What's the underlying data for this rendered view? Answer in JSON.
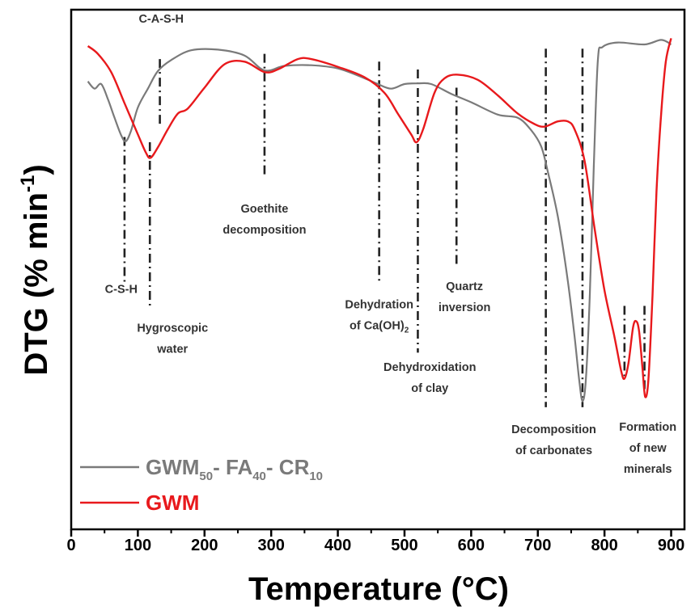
{
  "chart_data": {
    "type": "line",
    "xlabel": "Temperature (°C)",
    "ylabel_parts": {
      "main": "DTG (% min",
      "sup": "-1",
      "close": ")"
    },
    "xlim": [
      0,
      920
    ],
    "x_ticks": [
      0,
      100,
      200,
      300,
      400,
      500,
      600,
      700,
      800,
      900
    ],
    "y_ticks_labeled": false,
    "grid": false,
    "legend_position": "bottom-left",
    "series": [
      {
        "id": "gwm50",
        "name": "GWM50- FA40- CR10",
        "name_parts": [
          {
            "t": "GWM",
            "sub": false
          },
          {
            "t": "50",
            "sub": true
          },
          {
            "t": "- FA",
            "sub": false
          },
          {
            "t": "40",
            "sub": true
          },
          {
            "t": "- CR",
            "sub": false
          },
          {
            "t": "10",
            "sub": true
          }
        ],
        "color": "#7a7a7a",
        "points": [
          [
            25,
            0.86
          ],
          [
            35,
            0.85
          ],
          [
            45,
            0.855
          ],
          [
            55,
            0.83
          ],
          [
            65,
            0.79
          ],
          [
            75,
            0.76
          ],
          [
            82,
            0.745
          ],
          [
            90,
            0.77
          ],
          [
            100,
            0.81
          ],
          [
            115,
            0.85
          ],
          [
            130,
            0.88
          ],
          [
            150,
            0.905
          ],
          [
            180,
            0.92
          ],
          [
            220,
            0.925
          ],
          [
            260,
            0.91
          ],
          [
            290,
            0.885
          ],
          [
            320,
            0.89
          ],
          [
            360,
            0.895
          ],
          [
            400,
            0.885
          ],
          [
            440,
            0.87
          ],
          [
            460,
            0.855
          ],
          [
            480,
            0.85
          ],
          [
            500,
            0.855
          ],
          [
            520,
            0.86
          ],
          [
            540,
            0.855
          ],
          [
            570,
            0.84
          ],
          [
            600,
            0.82
          ],
          [
            640,
            0.8
          ],
          [
            670,
            0.79
          ],
          [
            690,
            0.77
          ],
          [
            705,
            0.735
          ],
          [
            715,
            0.69
          ],
          [
            730,
            0.6
          ],
          [
            745,
            0.48
          ],
          [
            755,
            0.37
          ],
          [
            762,
            0.29
          ],
          [
            767,
            0.245
          ],
          [
            772,
            0.29
          ],
          [
            778,
            0.45
          ],
          [
            784,
            0.7
          ],
          [
            790,
            0.9
          ],
          [
            797,
            0.93
          ],
          [
            820,
            0.935
          ],
          [
            860,
            0.935
          ],
          [
            885,
            0.94
          ],
          [
            900,
            0.935
          ]
        ]
      },
      {
        "id": "gwm",
        "name": "GWM",
        "name_parts": [
          {
            "t": "GWM",
            "sub": false
          }
        ],
        "color": "#e8191c",
        "points": [
          [
            25,
            0.93
          ],
          [
            40,
            0.915
          ],
          [
            60,
            0.88
          ],
          [
            80,
            0.82
          ],
          [
            100,
            0.76
          ],
          [
            112,
            0.725
          ],
          [
            119,
            0.715
          ],
          [
            130,
            0.735
          ],
          [
            145,
            0.77
          ],
          [
            160,
            0.8
          ],
          [
            175,
            0.81
          ],
          [
            200,
            0.85
          ],
          [
            230,
            0.895
          ],
          [
            260,
            0.9
          ],
          [
            290,
            0.88
          ],
          [
            310,
            0.885
          ],
          [
            340,
            0.905
          ],
          [
            360,
            0.905
          ],
          [
            400,
            0.89
          ],
          [
            440,
            0.87
          ],
          [
            470,
            0.84
          ],
          [
            490,
            0.8
          ],
          [
            510,
            0.76
          ],
          [
            518,
            0.745
          ],
          [
            528,
            0.77
          ],
          [
            545,
            0.84
          ],
          [
            560,
            0.868
          ],
          [
            580,
            0.875
          ],
          [
            610,
            0.865
          ],
          [
            640,
            0.835
          ],
          [
            670,
            0.8
          ],
          [
            695,
            0.78
          ],
          [
            710,
            0.775
          ],
          [
            730,
            0.785
          ],
          [
            745,
            0.785
          ],
          [
            755,
            0.77
          ],
          [
            770,
            0.71
          ],
          [
            785,
            0.58
          ],
          [
            800,
            0.46
          ],
          [
            815,
            0.37
          ],
          [
            825,
            0.305
          ],
          [
            830,
            0.29
          ],
          [
            836,
            0.32
          ],
          [
            843,
            0.39
          ],
          [
            848,
            0.4
          ],
          [
            852,
            0.38
          ],
          [
            857,
            0.31
          ],
          [
            861,
            0.255
          ],
          [
            866,
            0.29
          ],
          [
            872,
            0.45
          ],
          [
            878,
            0.65
          ],
          [
            885,
            0.8
          ],
          [
            892,
            0.9
          ],
          [
            900,
            0.945
          ]
        ]
      }
    ],
    "markers": [
      {
        "x": 80,
        "ytop": 0.755,
        "ybot": 0.475
      },
      {
        "x": 118,
        "ytop": 0.745,
        "ybot": 0.425
      },
      {
        "x": 133,
        "ytop": 0.905,
        "ybot": 0.775
      },
      {
        "x": 290,
        "ytop": 0.915,
        "ybot": 0.68
      },
      {
        "x": 462,
        "ytop": 0.9,
        "ybot": 0.475
      },
      {
        "x": 520,
        "ytop": 0.885,
        "ybot": 0.34
      },
      {
        "x": 578,
        "ytop": 0.85,
        "ybot": 0.51
      },
      {
        "x": 712,
        "ytop": 0.925,
        "ybot": 0.235
      },
      {
        "x": 767,
        "ytop": 0.925,
        "ybot": 0.235
      },
      {
        "x": 830,
        "ytop": 0.43,
        "ybot": 0.295
      },
      {
        "x": 860,
        "ytop": 0.43,
        "ybot": 0.265
      }
    ],
    "annotations": [
      {
        "id": "cash",
        "lines": [
          "C-A-S-H"
        ],
        "x": 135,
        "y": 0.975,
        "anchor": "middle"
      },
      {
        "id": "csh",
        "lines": [
          "C-S-H"
        ],
        "x": 75,
        "y": 0.455,
        "anchor": "middle"
      },
      {
        "id": "hygro",
        "lines": [
          "Hygroscopic",
          "water"
        ],
        "x": 152,
        "y": 0.38,
        "anchor": "middle"
      },
      {
        "id": "goethite",
        "lines": [
          "Goethite",
          "decomposition"
        ],
        "x": 290,
        "y": 0.61,
        "anchor": "middle"
      },
      {
        "id": "dehydration",
        "lines": [
          "Dehydration",
          "of Ca(OH)|2"
        ],
        "x": 462,
        "y": 0.425,
        "anchor": "middle"
      },
      {
        "id": "quartz",
        "lines": [
          "Quartz",
          "inversion"
        ],
        "x": 590,
        "y": 0.46,
        "anchor": "middle"
      },
      {
        "id": "dehydrox",
        "lines": [
          "Dehydroxidation",
          "of clay"
        ],
        "x": 538,
        "y": 0.305,
        "anchor": "middle"
      },
      {
        "id": "carbonates",
        "lines": [
          "Decomposition",
          "of carbonates"
        ],
        "x": 724,
        "y": 0.185,
        "anchor": "middle"
      },
      {
        "id": "minerals",
        "lines": [
          "Formation",
          "of new",
          "minerals"
        ],
        "x": 865,
        "y": 0.19,
        "anchor": "middle"
      }
    ]
  }
}
